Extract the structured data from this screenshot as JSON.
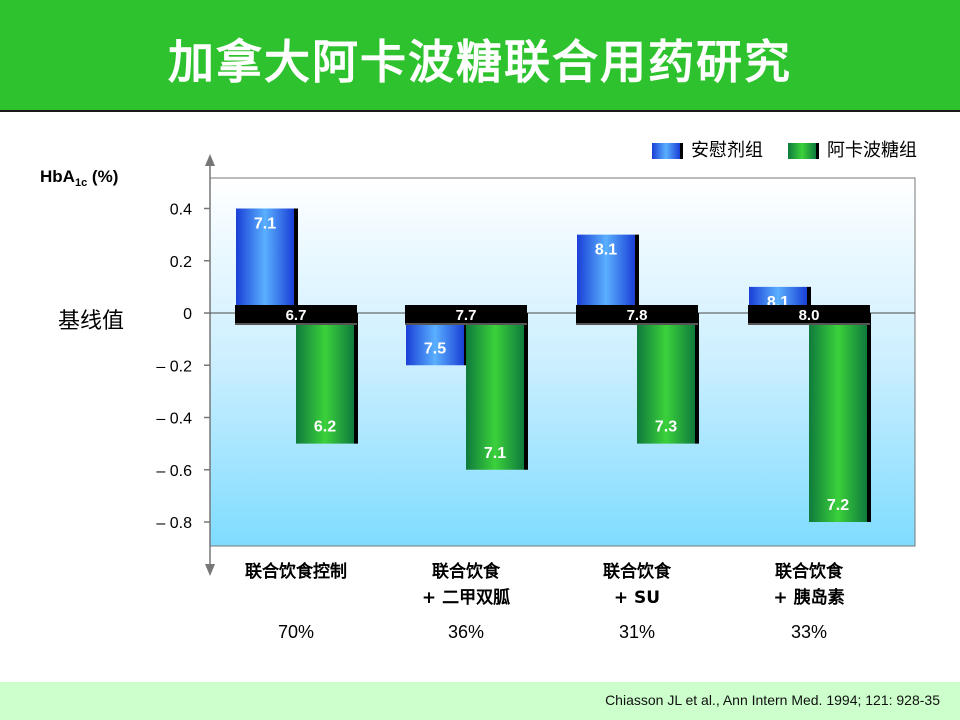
{
  "title": "加拿大阿卡波糖联合用药研究",
  "footer": {
    "citation": "Chiasson JL et al., Ann Intern Med. 1994; 121: 928-35"
  },
  "chart_data": {
    "type": "bar",
    "ylabel_main": "HbA",
    "ylabel_sub": "1c",
    "ylabel_unit": " (%)",
    "baseline_label": "基线值",
    "ylim": [
      -0.88,
      0.52
    ],
    "yticks": [
      {
        "value": 0.4,
        "label": "0.4"
      },
      {
        "value": 0.2,
        "label": "0.2"
      },
      {
        "value": 0,
        "label": "0"
      },
      {
        "value": -0.2,
        "label": "– 0.2"
      },
      {
        "value": -0.4,
        "label": "– 0.4"
      },
      {
        "value": -0.6,
        "label": "– 0.6"
      },
      {
        "value": -0.8,
        "label": "– 0.8"
      }
    ],
    "legend": {
      "placement": "top-right"
    },
    "series": [
      {
        "name": "安慰剂组",
        "color_top": "#1a3fd6",
        "color_light": "#5ab0ff"
      },
      {
        "name": "阿卡波糖组",
        "color_top": "#0f7a3c",
        "color_light": "#3bd13b"
      }
    ],
    "groups": [
      {
        "category_lines": [
          "联合饮食控制"
        ],
        "percent": "70%",
        "baseline_value": "6.7",
        "placebo": {
          "change": 0.4,
          "label": "7.1"
        },
        "acarbose": {
          "change": -0.5,
          "label": "6.2"
        }
      },
      {
        "category_lines": [
          "联合饮食",
          "+ 二甲双胍"
        ],
        "percent": "36%",
        "baseline_value": "7.7",
        "placebo": {
          "change": -0.2,
          "label": "7.5"
        },
        "acarbose": {
          "change": -0.6,
          "label": "7.1"
        }
      },
      {
        "category_lines": [
          "联合饮食",
          "+ SU"
        ],
        "percent": "31%",
        "baseline_value": "7.8",
        "placebo": {
          "change": 0.3,
          "label": "8.1"
        },
        "acarbose": {
          "change": -0.5,
          "label": "7.3"
        }
      },
      {
        "category_lines": [
          "联合饮食",
          "+ 胰岛素"
        ],
        "percent": "33%",
        "baseline_value": "8.0",
        "placebo": {
          "change": 0.1,
          "label": "8.1"
        },
        "acarbose": {
          "change": -0.8,
          "label": "7.2"
        }
      }
    ]
  }
}
